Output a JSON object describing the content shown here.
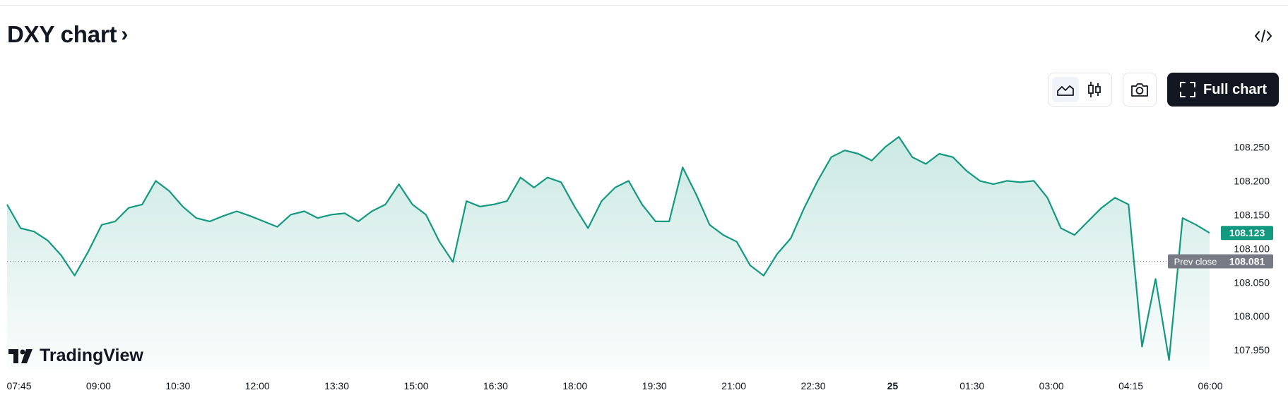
{
  "header": {
    "title": "DXY chart",
    "title_chevron": "›"
  },
  "toolbar": {
    "embed_icon": "code-icon",
    "line_chart_icon": "area-chart-icon",
    "candle_chart_icon": "candlestick-icon",
    "camera_icon": "camera-icon",
    "full_chart_label": "Full chart",
    "full_chart_icon": "fullscreen-icon"
  },
  "branding": {
    "logo_text": "TradingView"
  },
  "colors": {
    "line": "#139980",
    "price_tag": "#139980",
    "prev_close_tag": "#787b86",
    "button_dark": "#131722"
  },
  "chart_data": {
    "type": "area",
    "symbol": "DXY",
    "x_ticks": [
      "07:45",
      "09:00",
      "10:30",
      "12:00",
      "13:30",
      "15:00",
      "16:30",
      "18:00",
      "19:30",
      "21:00",
      "22:30",
      "25",
      "01:30",
      "03:00",
      "04:15",
      "06:00"
    ],
    "y_ticks": [
      107.95,
      108.0,
      108.05,
      108.1,
      108.15,
      108.2,
      108.25
    ],
    "ylim": [
      107.92,
      108.29
    ],
    "last_price": "108.123",
    "prev_close": {
      "label": "Prev close",
      "value": "108.081"
    },
    "x": [
      "07:45",
      "08:00",
      "08:15",
      "08:30",
      "08:45",
      "09:00",
      "09:15",
      "09:30",
      "09:45",
      "10:00",
      "10:15",
      "10:30",
      "10:45",
      "11:00",
      "11:15",
      "11:30",
      "11:45",
      "12:00",
      "12:15",
      "12:30",
      "12:45",
      "13:00",
      "13:15",
      "13:30",
      "13:45",
      "14:00",
      "14:15",
      "14:30",
      "14:45",
      "15:00",
      "15:15",
      "15:30",
      "15:45",
      "16:00",
      "16:15",
      "16:30",
      "16:45",
      "17:00",
      "17:15",
      "17:30",
      "17:45",
      "18:00",
      "18:15",
      "18:30",
      "18:45",
      "19:00",
      "19:15",
      "19:30",
      "19:45",
      "20:00",
      "20:15",
      "20:30",
      "20:45",
      "21:00",
      "21:15",
      "21:30",
      "21:45",
      "22:00",
      "22:15",
      "22:30",
      "22:45",
      "23:00",
      "23:15",
      "23:30",
      "23:45",
      "00:00",
      "00:15",
      "00:30",
      "00:45",
      "01:00",
      "01:15",
      "01:30",
      "01:45",
      "02:00",
      "02:15",
      "02:30",
      "02:45",
      "03:00",
      "03:15",
      "03:30",
      "03:45",
      "04:00",
      "04:15",
      "04:30",
      "04:45",
      "05:00",
      "05:15",
      "05:30",
      "05:45",
      "06:00"
    ],
    "y": [
      108.165,
      108.13,
      108.125,
      108.112,
      108.09,
      108.06,
      108.095,
      108.135,
      108.14,
      108.16,
      108.165,
      108.2,
      108.185,
      108.162,
      108.145,
      108.14,
      108.148,
      108.155,
      108.148,
      108.14,
      108.132,
      108.15,
      108.155,
      108.145,
      108.15,
      108.152,
      108.14,
      108.155,
      108.165,
      108.195,
      108.165,
      108.15,
      108.11,
      108.08,
      108.17,
      108.162,
      108.165,
      108.17,
      108.205,
      108.19,
      108.205,
      108.198,
      108.162,
      108.13,
      108.17,
      108.19,
      108.2,
      108.165,
      108.14,
      108.14,
      108.22,
      108.18,
      108.135,
      108.12,
      108.11,
      108.075,
      108.06,
      108.092,
      108.115,
      108.16,
      108.2,
      108.235,
      108.245,
      108.24,
      108.23,
      108.25,
      108.265,
      108.235,
      108.225,
      108.24,
      108.235,
      108.215,
      108.2,
      108.195,
      108.2,
      108.198,
      108.2,
      108.175,
      108.13,
      108.12,
      108.14,
      108.16,
      108.175,
      108.165,
      107.955,
      108.055,
      107.935,
      108.145,
      108.135,
      108.123
    ]
  }
}
